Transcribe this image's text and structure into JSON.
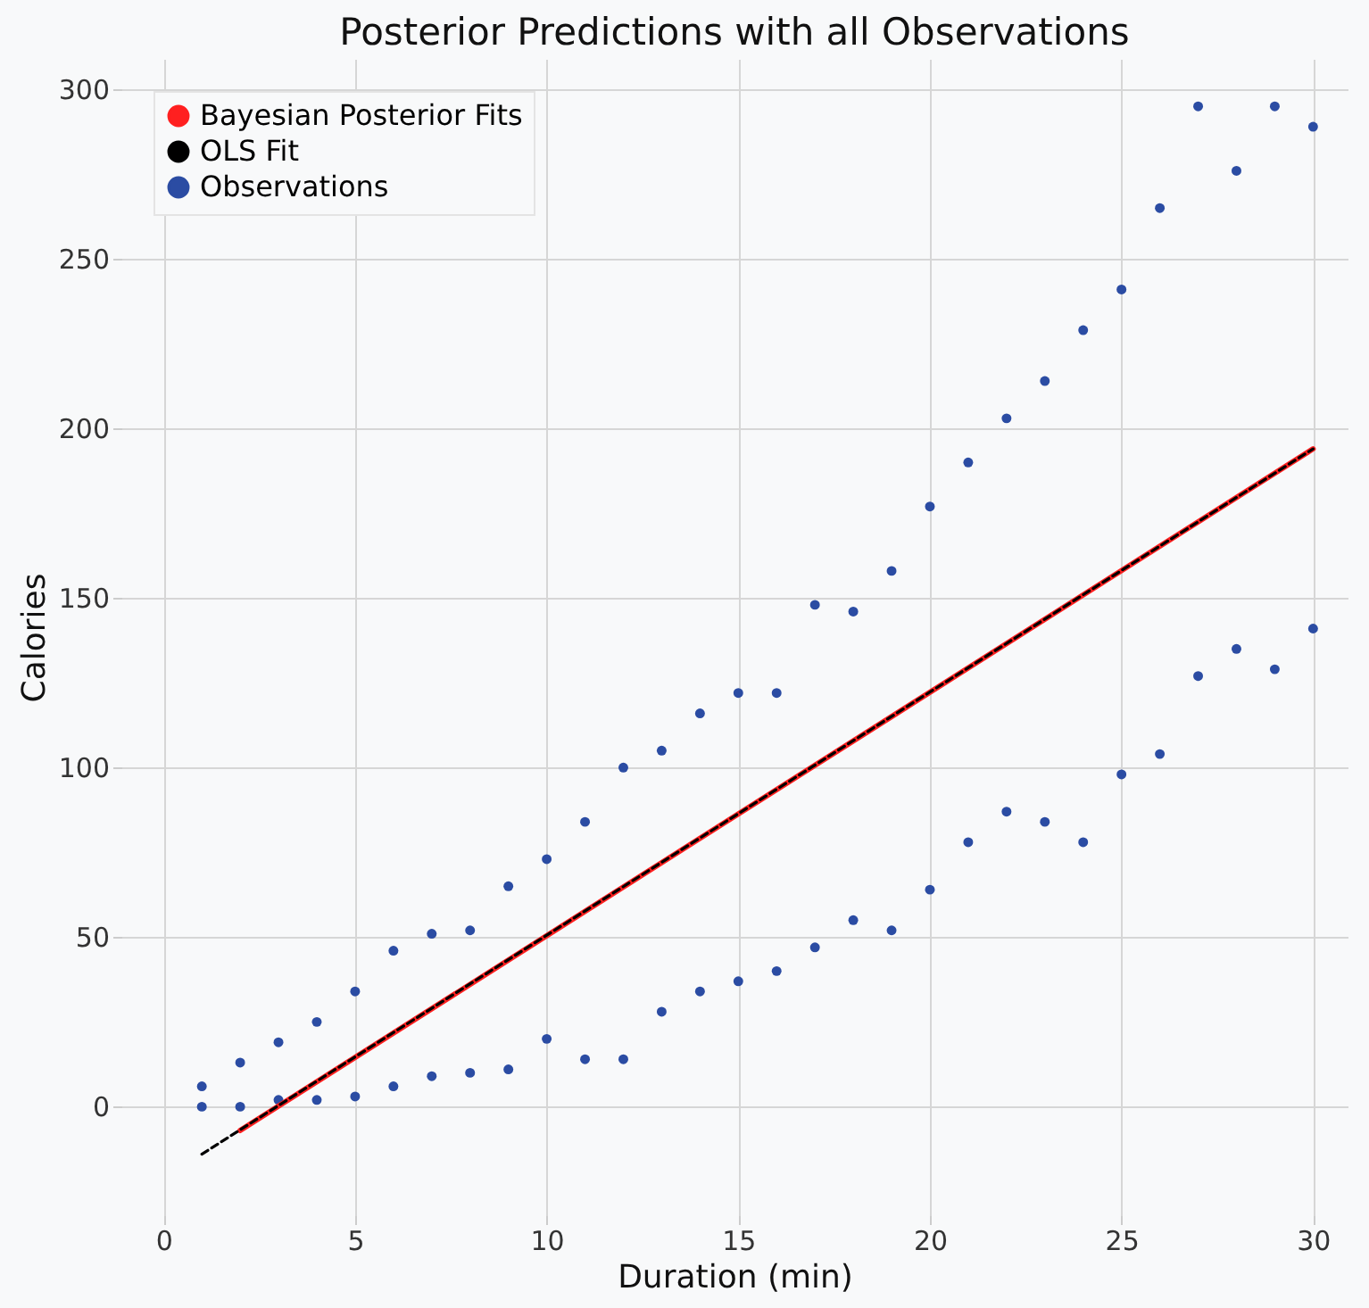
{
  "chart_data": {
    "type": "scatter",
    "title": "Posterior Predictions with all Observations",
    "xlabel": "Duration (min)",
    "ylabel": "Calories",
    "xlim": [
      -1.1,
      30.9
    ],
    "ylim": [
      -32,
      309
    ],
    "xticks": [
      0,
      5,
      10,
      15,
      20,
      25,
      30
    ],
    "yticks": [
      0,
      50,
      100,
      150,
      200,
      250,
      300
    ],
    "grid": true,
    "legend": "top left",
    "series": [
      {
        "name": "Observations",
        "marker": "circle",
        "color": "#2b4ca3",
        "x": [
          1,
          2,
          3,
          4,
          5,
          6,
          7,
          8,
          9,
          10,
          11,
          12,
          13,
          14,
          15,
          16,
          17,
          18,
          19,
          20,
          21,
          22,
          23,
          24,
          25,
          26,
          27,
          28,
          29,
          30,
          1,
          2,
          3,
          4,
          5,
          6,
          7,
          8,
          9,
          10,
          11,
          12,
          13,
          14,
          15,
          16,
          17,
          18,
          19,
          20,
          21,
          22,
          23,
          24,
          25,
          26,
          27,
          28,
          29,
          30
        ],
        "values": [
          0,
          0,
          2,
          2,
          3,
          6,
          9,
          10,
          11,
          20,
          14,
          14,
          28,
          34,
          37,
          40,
          47,
          55,
          52,
          64,
          78,
          87,
          84,
          78,
          98,
          104,
          127,
          135,
          129,
          141,
          6,
          13,
          19,
          25,
          34,
          46,
          51,
          52,
          65,
          73,
          84,
          100,
          105,
          116,
          122,
          122,
          148,
          146,
          158,
          177,
          190,
          203,
          214,
          229,
          241,
          265,
          295,
          276,
          295,
          289
        ]
      },
      {
        "name": "OLS Fit",
        "type": "line",
        "color": "#000000",
        "line_style": "dashed",
        "x": [
          1,
          30
        ],
        "values": [
          -14,
          194
        ]
      },
      {
        "name": "Bayesian Posterior Fits",
        "type": "line",
        "color": "#ff2020",
        "line_style": "solid",
        "x": [
          2,
          30
        ],
        "values": [
          -7,
          194
        ]
      }
    ]
  }
}
